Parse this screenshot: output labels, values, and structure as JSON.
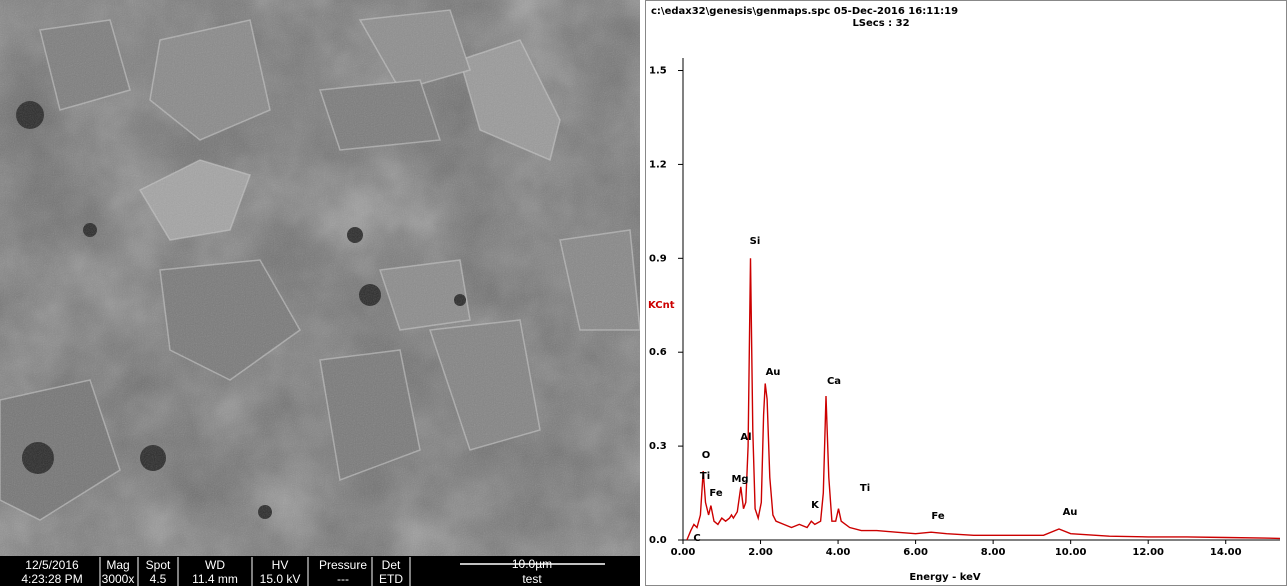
{
  "sem_image": {
    "info_headers": [
      "12/5/2016",
      "Mag",
      "Spot",
      "WD",
      "HV",
      "Pressure",
      "Det"
    ],
    "info_values": [
      "4:23:28 PM",
      "3000x",
      "4.5",
      "11.4 mm",
      "15.0 kV",
      "---",
      "ETD"
    ],
    "scale_bar": "10.0µm",
    "label": "test"
  },
  "chart_data": {
    "type": "line",
    "title": "c:\\edax32\\genesis\\genmaps.spc  05-Dec-2016 16:11:19",
    "subtitle": "LSecs : 32",
    "xlabel": "Energy - keV",
    "ylabel": "KCnt",
    "color": "#cc0000",
    "x": [
      0.1,
      0.2,
      0.28,
      0.36,
      0.45,
      0.52,
      0.58,
      0.66,
      0.72,
      0.8,
      0.9,
      1.0,
      1.1,
      1.2,
      1.25,
      1.3,
      1.4,
      1.49,
      1.56,
      1.62,
      1.68,
      1.74,
      1.8,
      1.86,
      1.94,
      2.02,
      2.08,
      2.12,
      2.17,
      2.24,
      2.32,
      2.4,
      2.6,
      2.8,
      3.0,
      3.2,
      3.31,
      3.4,
      3.55,
      3.62,
      3.69,
      3.76,
      3.84,
      3.94,
      4.01,
      4.08,
      4.3,
      4.6,
      5.0,
      5.5,
      6.0,
      6.4,
      6.8,
      7.5,
      8.5,
      9.3,
      9.7,
      10.0,
      11.0,
      12.0,
      13.0,
      14.0,
      15.0,
      15.4
    ],
    "values": [
      0.0,
      0.03,
      0.05,
      0.04,
      0.08,
      0.22,
      0.12,
      0.08,
      0.11,
      0.06,
      0.05,
      0.07,
      0.06,
      0.07,
      0.08,
      0.07,
      0.09,
      0.17,
      0.1,
      0.12,
      0.3,
      0.9,
      0.35,
      0.1,
      0.07,
      0.12,
      0.4,
      0.5,
      0.45,
      0.2,
      0.08,
      0.06,
      0.05,
      0.04,
      0.05,
      0.04,
      0.06,
      0.05,
      0.06,
      0.15,
      0.46,
      0.2,
      0.06,
      0.06,
      0.1,
      0.06,
      0.04,
      0.03,
      0.03,
      0.025,
      0.02,
      0.025,
      0.02,
      0.015,
      0.015,
      0.015,
      0.035,
      0.02,
      0.012,
      0.01,
      0.01,
      0.008,
      0.006,
      0.005
    ],
    "annotations": [
      "C",
      "O",
      "Ti",
      "Fe",
      "Mg",
      "Al",
      "Si",
      "Au",
      "Ca",
      "K",
      "Ti",
      "Fe",
      "Au"
    ],
    "xlim": [
      0,
      15.4
    ],
    "ylim": [
      0,
      1.54
    ],
    "xticks": [
      {
        "value": 0,
        "label": "0.00"
      },
      {
        "value": 2,
        "label": "2.00"
      },
      {
        "value": 4,
        "label": "4.00"
      },
      {
        "value": 6,
        "label": "6.00"
      },
      {
        "value": 8,
        "label": "8.00"
      },
      {
        "value": 10,
        "label": "10.00"
      },
      {
        "value": 12,
        "label": "12.00"
      },
      {
        "value": 14,
        "label": "14.00"
      }
    ],
    "yticks": [
      {
        "value": 0,
        "label": "0.0"
      },
      0.3,
      0.6,
      0.9,
      1.2,
      1.5
    ]
  }
}
